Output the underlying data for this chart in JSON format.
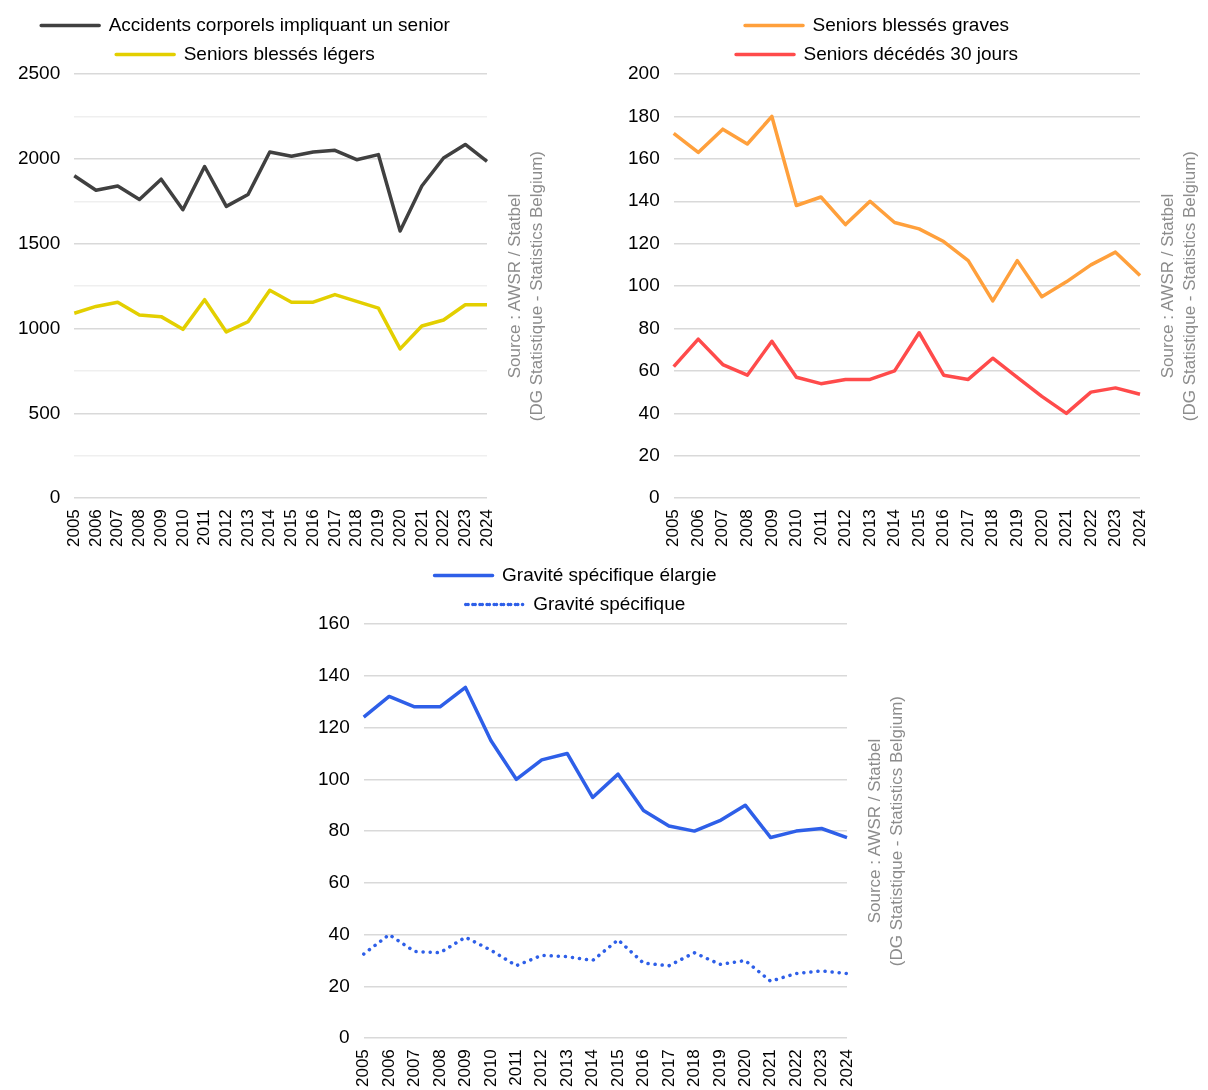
{
  "chart_data": [
    {
      "type": "line",
      "categories": [
        "2005",
        "2006",
        "2007",
        "2008",
        "2009",
        "2010",
        "2011",
        "2012",
        "2013",
        "2014",
        "2015",
        "2016",
        "2017",
        "2018",
        "2019",
        "2020",
        "2021",
        "2022",
        "2023",
        "2024"
      ],
      "series": [
        {
          "name": "Accidents corporels impliquant un senior",
          "color": "#404040",
          "values": [
            1900,
            1815,
            1840,
            1760,
            1880,
            1700,
            1955,
            1720,
            1790,
            2040,
            2015,
            2040,
            2050,
            1995,
            2025,
            1575,
            1840,
            2005,
            2085,
            1985
          ]
        },
        {
          "name": "Seniors blessés légers",
          "color": "#e3cf00",
          "values": [
            1090,
            1130,
            1155,
            1080,
            1070,
            995,
            1170,
            980,
            1040,
            1225,
            1155,
            1155,
            1200,
            1160,
            1120,
            880,
            1015,
            1050,
            1140,
            1140
          ]
        }
      ],
      "ylim": [
        0,
        2500
      ],
      "yticks": [
        0,
        {
          "value": 250,
          "label": null
        },
        500,
        {
          "value": 750,
          "label": null
        },
        1000,
        {
          "value": 1250,
          "label": null
        },
        1500,
        {
          "value": 1750,
          "label": null
        },
        2000,
        {
          "value": 2250,
          "label": null
        },
        2500
      ],
      "grid": "y",
      "legend": "top",
      "marker": "none",
      "line_style": "solid",
      "annotations": [
        "Source : AWSR / Statbel",
        "(DG Statistique - Statistics Belgium)"
      ]
    },
    {
      "type": "line",
      "categories": [
        "2005",
        "2006",
        "2007",
        "2008",
        "2009",
        "2010",
        "2011",
        "2012",
        "2013",
        "2014",
        "2015",
        "2016",
        "2017",
        "2018",
        "2019",
        "2020",
        "2021",
        "2022",
        "2023",
        "2024"
      ],
      "series": [
        {
          "name": "Seniors blessés graves",
          "color": "#ffa03c",
          "values": [
            172,
            163,
            174,
            167,
            180,
            138,
            142,
            129,
            140,
            130,
            127,
            121,
            112,
            93,
            112,
            95,
            102,
            110,
            116,
            105
          ]
        },
        {
          "name": "Seniors décédés 30 jours",
          "color": "#ff4b4b",
          "values": [
            62,
            75,
            63,
            58,
            74,
            57,
            54,
            56,
            56,
            60,
            78,
            58,
            56,
            66,
            57,
            48,
            40,
            50,
            52,
            49
          ]
        }
      ],
      "ylim": [
        0,
        200
      ],
      "yticks": [
        0,
        20,
        40,
        60,
        80,
        100,
        120,
        140,
        160,
        180,
        200
      ],
      "grid": "y",
      "legend": "top",
      "marker": "none",
      "line_style": "solid",
      "annotations": [
        "Source : AWSR / Statbel",
        "(DG Statistique - Statistics Belgium)"
      ]
    },
    {
      "type": "line",
      "categories": [
        "2005",
        "2006",
        "2007",
        "2008",
        "2009",
        "2010",
        "2011",
        "2012",
        "2013",
        "2014",
        "2015",
        "2016",
        "2017",
        "2018",
        "2019",
        "2020",
        "2021",
        "2022",
        "2023",
        "2024"
      ],
      "series": [
        {
          "name": "Gravité spécifique élargie",
          "color": "#2e5fe8",
          "values": [
            124,
            132,
            128,
            128,
            135.5,
            115,
            100,
            107.5,
            110,
            93,
            102,
            88,
            82,
            80,
            84,
            90,
            77.5,
            80,
            81,
            77.5
          ]
        },
        {
          "name": "Gravité spécifique",
          "color": "#2e5fe8",
          "line_style": "dotted",
          "values": [
            32.5,
            40,
            33.5,
            33,
            39,
            34,
            28,
            32,
            31.5,
            30,
            38,
            29,
            28,
            33,
            28.5,
            30,
            22,
            25,
            26,
            25
          ]
        }
      ],
      "ylim": [
        0,
        160
      ],
      "yticks": [
        0,
        20,
        40,
        60,
        80,
        100,
        120,
        140,
        160
      ],
      "grid": "y",
      "legend": "top",
      "marker": "none",
      "line_style": "solid",
      "annotations": [
        "Source : AWSR / Statbel",
        "(DG Statistique - Statistics Belgium)"
      ]
    }
  ]
}
